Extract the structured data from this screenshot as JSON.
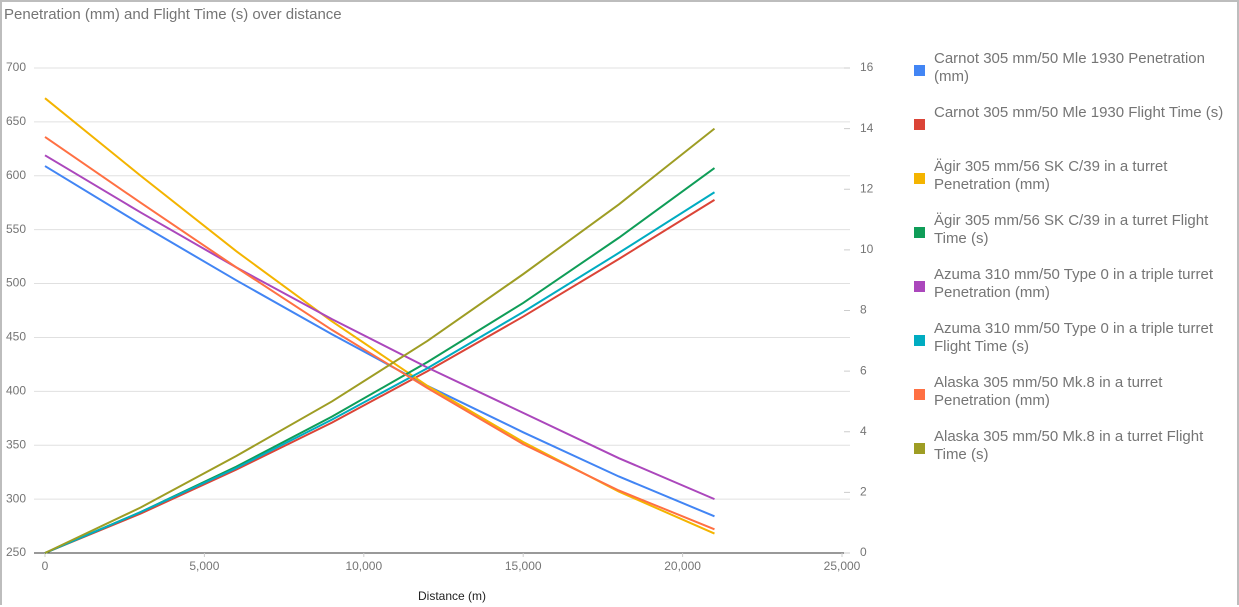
{
  "chart_data": {
    "type": "line",
    "title": "Penetration (mm) and Flight Time (s) over distance",
    "x_label": "Distance (m)",
    "x": [
      0,
      3000,
      6000,
      9000,
      12000,
      15000,
      18000,
      21000
    ],
    "xlim": [
      0,
      25000
    ],
    "xticks": [
      0,
      {
        "value": 5000,
        "label": "5,000"
      },
      {
        "value": 10000,
        "label": "10,000"
      },
      {
        "value": 15000,
        "label": "15,000"
      },
      {
        "value": 20000,
        "label": "20,000"
      },
      {
        "value": 25000,
        "label": "25,000"
      }
    ],
    "ylim": [
      250,
      700
    ],
    "yticks": [
      250,
      300,
      350,
      400,
      450,
      500,
      550,
      600,
      650,
      700
    ],
    "y2lim": [
      0,
      16
    ],
    "y2ticks": [
      0,
      2,
      4,
      6,
      8,
      10,
      12,
      14,
      16
    ],
    "grid": true,
    "legend": "right",
    "series": [
      {
        "name": "Carnot 305 mm/50 Mle 1930 Penetration (mm)",
        "color": "#4285f4",
        "values": [
          609,
          555,
          503,
          453,
          405,
          362,
          321,
          284
        ]
      },
      {
        "name": "Carnot 305 mm/50 Mle 1930 Flight Time (s)",
        "color": "#db4437",
        "axis": "y2",
        "values": [
          0,
          1.3,
          2.75,
          4.3,
          6.0,
          7.8,
          9.7,
          11.65
        ]
      },
      {
        "name": "Ägir 305 mm/56 SK C/39 in a turret Penetration (mm)",
        "color": "#f4b400",
        "values": [
          672,
          600,
          530,
          465,
          405,
          353,
          307,
          268
        ]
      },
      {
        "name": "Ägir 305 mm/56 SK C/39 in a turret Flight Time (s)",
        "color": "#0f9d58",
        "axis": "y2",
        "values": [
          0,
          1.35,
          2.85,
          4.5,
          6.3,
          8.25,
          10.4,
          12.7
        ]
      },
      {
        "name": "Azuma 310 mm/50 Type 0 in a triple turret Penetration (mm)",
        "color": "#ab47bc",
        "values": [
          619,
          566,
          515,
          467,
          422,
          380,
          338,
          300
        ]
      },
      {
        "name": "Azuma 310 mm/50 Type 0 in a triple turret Flight Time (s)",
        "color": "#00acc1",
        "axis": "y2",
        "values": [
          0,
          1.35,
          2.8,
          4.4,
          6.1,
          7.95,
          9.9,
          11.9
        ]
      },
      {
        "name": "Alaska 305 mm/50 Mk.8 in a turret Penetration (mm)",
        "color": "#ff7043",
        "values": [
          636,
          575,
          515,
          457,
          403,
          351,
          308,
          272
        ]
      },
      {
        "name": "Alaska 305 mm/50 Mk.8 in a turret Flight Time (s)",
        "color": "#9e9d24",
        "axis": "y2",
        "values": [
          0,
          1.5,
          3.2,
          5.0,
          7.0,
          9.2,
          11.5,
          14.0
        ]
      }
    ]
  }
}
